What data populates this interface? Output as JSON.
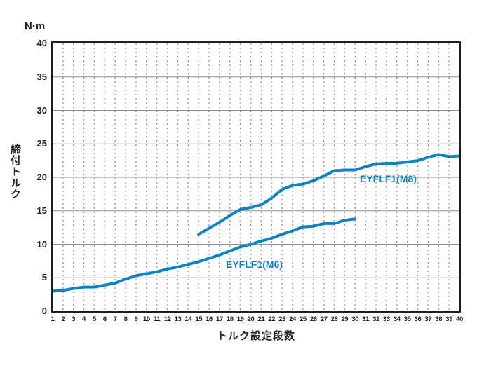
{
  "chart_data": {
    "type": "line",
    "title": "",
    "unit_label": "N·m",
    "ylabel": "締付トルク",
    "xlabel": "トルク設定段数",
    "xlim": [
      1,
      40
    ],
    "ylim": [
      0,
      40
    ],
    "y_ticks": [
      0,
      5,
      10,
      15,
      20,
      25,
      30,
      35,
      40
    ],
    "x_ticks": [
      1,
      2,
      3,
      4,
      5,
      6,
      7,
      8,
      9,
      10,
      11,
      12,
      13,
      14,
      15,
      16,
      17,
      18,
      19,
      20,
      21,
      22,
      23,
      24,
      25,
      26,
      27,
      28,
      29,
      30,
      31,
      32,
      33,
      34,
      35,
      36,
      37,
      38,
      39,
      40
    ],
    "grid": {
      "horizontal": "solid",
      "vertical": "dotted"
    },
    "legend_position": "inline-labels",
    "line_color": "#0e82c5",
    "series": [
      {
        "name": "EYFLF1(M6)",
        "x": [
          1,
          2,
          3,
          4,
          5,
          6,
          7,
          8,
          9,
          10,
          11,
          12,
          13,
          14,
          15,
          16,
          17,
          18,
          19,
          20,
          21,
          22,
          23,
          24,
          25,
          26,
          27,
          28,
          29,
          30
        ],
        "values": [
          3.0,
          3.1,
          3.4,
          3.6,
          3.6,
          3.9,
          4.2,
          4.8,
          5.3,
          5.6,
          5.9,
          6.3,
          6.6,
          7.0,
          7.4,
          7.9,
          8.4,
          9.0,
          9.6,
          10.0,
          10.5,
          10.9,
          11.5,
          12.0,
          12.6,
          12.7,
          13.1,
          13.1,
          13.6,
          13.8
        ]
      },
      {
        "name": "EYFLF1(M8)",
        "x": [
          15,
          16,
          17,
          18,
          19,
          20,
          21,
          22,
          23,
          24,
          25,
          26,
          27,
          28,
          29,
          30,
          31,
          32,
          33,
          34,
          35,
          36,
          37,
          38,
          39,
          40
        ],
        "values": [
          11.5,
          12.4,
          13.3,
          14.3,
          15.2,
          15.5,
          15.9,
          16.9,
          18.2,
          18.8,
          19.0,
          19.5,
          20.2,
          21.0,
          21.1,
          21.1,
          21.6,
          22.0,
          22.1,
          22.1,
          22.3,
          22.5,
          23.0,
          23.4,
          23.1,
          23.2
        ]
      }
    ],
    "colors": {
      "line": "#0e82c5",
      "frame": "#221e1c",
      "grid_solid": "#8f8f8f",
      "grid_dotted": "#9a9a9a",
      "text": "#221e1c",
      "background": "#ffffff"
    }
  }
}
